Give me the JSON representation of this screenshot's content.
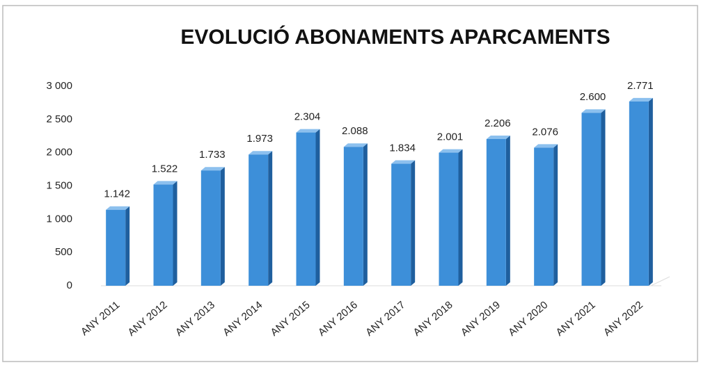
{
  "chart_data": {
    "type": "bar3d",
    "title": "EVOLUCIÓ ABONAMENTS APARCAMENTS",
    "categories": [
      "ANY 2011",
      "ANY 2012",
      "ANY 2013",
      "ANY 2014",
      "ANY 2015",
      "ANY 2016",
      "ANY 2017",
      "ANY 2018",
      "ANY 2019",
      "ANY 2020",
      "ANY 2021",
      "ANY 2022"
    ],
    "values": [
      1142,
      1522,
      1733,
      1973,
      2304,
      2088,
      1834,
      2001,
      2206,
      2076,
      2600,
      2771
    ],
    "value_labels": [
      "1.142",
      "1.522",
      "1.733",
      "1.973",
      "2.304",
      "2.088",
      "1.834",
      "2.001",
      "2.206",
      "2.076",
      "2.600",
      "2.771"
    ],
    "color": "#3d8fd9",
    "ylim": [
      0,
      3000
    ],
    "yticks": [
      0,
      500,
      {
        "value": 1000,
        "label": "1 000"
      },
      {
        "value": 1500,
        "label": "1 500"
      },
      {
        "value": 2000,
        "label": "2 000"
      },
      {
        "value": 2500,
        "label": "2 500"
      },
      {
        "value": 3000,
        "label": "3 000"
      }
    ],
    "grid": false
  }
}
